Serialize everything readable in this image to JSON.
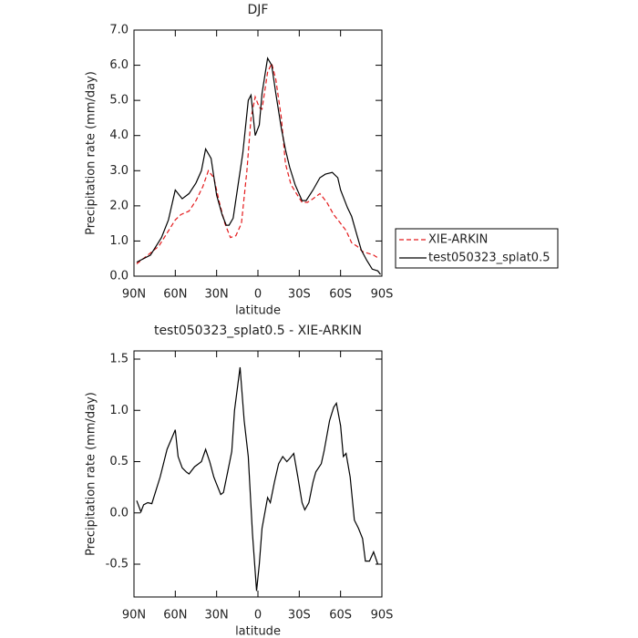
{
  "chart_data": [
    {
      "type": "line",
      "title": "DJF",
      "x_label": "latitude",
      "y_label": "Precipitation rate (mm/day)",
      "xlim": [
        90,
        -90
      ],
      "xticks": [
        {
          "value": 90,
          "label": "90N"
        },
        {
          "value": 60,
          "label": "60N"
        },
        {
          "value": 30,
          "label": "30N"
        },
        0,
        {
          "value": -30,
          "label": "30S"
        },
        {
          "value": -60,
          "label": "60S"
        },
        {
          "value": -90,
          "label": "90S"
        }
      ],
      "ylim": [
        0,
        7
      ],
      "yticks": [
        {
          "value": 0,
          "label": "0.0"
        },
        {
          "value": 1,
          "label": "1.0"
        },
        {
          "value": 2,
          "label": "2.0"
        },
        {
          "value": 3,
          "label": "3.0"
        },
        {
          "value": 4,
          "label": "4.0"
        },
        {
          "value": 5,
          "label": "5.0"
        },
        {
          "value": 6,
          "label": "6.0"
        },
        {
          "value": 7,
          "label": "7.0"
        }
      ],
      "series": [
        {
          "name": "XIE-ARKIN",
          "color": "#e41a1c",
          "dash": true,
          "x": [
            88,
            80,
            72,
            64,
            60,
            56,
            50,
            45,
            40,
            36,
            32,
            28,
            24,
            20,
            16,
            12,
            8,
            5,
            2,
            -1,
            -3,
            -7,
            -10,
            -13,
            -17,
            -20,
            -24,
            -28,
            -32,
            -36,
            -40,
            -45,
            -50,
            -55,
            -60,
            -64,
            -68,
            -72,
            -76,
            -80,
            -84,
            -88
          ],
          "values": [
            0.35,
            0.6,
            0.85,
            1.35,
            1.6,
            1.75,
            1.85,
            2.15,
            2.55,
            3.0,
            2.8,
            2.1,
            1.5,
            1.1,
            1.15,
            1.5,
            3.0,
            4.5,
            5.1,
            4.8,
            4.75,
            5.8,
            6.05,
            5.6,
            4.5,
            3.2,
            2.6,
            2.35,
            2.1,
            2.1,
            2.2,
            2.35,
            2.1,
            1.75,
            1.5,
            1.3,
            0.95,
            0.85,
            0.7,
            0.65,
            0.6,
            0.5
          ]
        },
        {
          "name": "test050323_splat0.5",
          "color": "#000000",
          "dash": false,
          "x": [
            88,
            78,
            70,
            65,
            60,
            55,
            50,
            45,
            41,
            38,
            34,
            30,
            26,
            23,
            21,
            18,
            14,
            11,
            7,
            5,
            2,
            -1,
            -3,
            -7,
            -10,
            -13,
            -17,
            -20,
            -23,
            -27,
            -32,
            -35,
            -40,
            -45,
            -49,
            -54,
            -58,
            -60,
            -65,
            -68,
            -72,
            -75,
            -79,
            -83,
            -87,
            -89
          ],
          "values": [
            0.4,
            0.6,
            1.1,
            1.6,
            2.45,
            2.2,
            2.35,
            2.65,
            3.0,
            3.62,
            3.35,
            2.3,
            1.75,
            1.45,
            1.45,
            1.65,
            2.7,
            3.5,
            5.0,
            5.15,
            4.0,
            4.3,
            5.2,
            6.2,
            6.0,
            5.2,
            4.2,
            3.6,
            3.1,
            2.6,
            2.15,
            2.15,
            2.45,
            2.8,
            2.9,
            2.95,
            2.8,
            2.45,
            1.95,
            1.7,
            1.15,
            0.75,
            0.45,
            0.2,
            0.15,
            0.05
          ]
        }
      ],
      "legend": "outside-right"
    },
    {
      "type": "line",
      "title": "test050323_splat0.5 - XIE-ARKIN",
      "x_label": "latitude",
      "y_label": "Precipitation rate (mm/day)",
      "xlim": [
        90,
        -90
      ],
      "xticks": [
        {
          "value": 90,
          "label": "90N"
        },
        {
          "value": 60,
          "label": "60N"
        },
        {
          "value": 30,
          "label": "30N"
        },
        0,
        {
          "value": -30,
          "label": "30S"
        },
        {
          "value": -60,
          "label": "60S"
        },
        {
          "value": -90,
          "label": "90S"
        }
      ],
      "ylim": [
        -0.82,
        1.58
      ],
      "yticks": [
        -0.5,
        {
          "value": 0,
          "label": "0.0"
        },
        0.5,
        {
          "value": 1,
          "label": "1.0"
        },
        1.5
      ],
      "series": [
        {
          "color": "#000000",
          "dash": false,
          "x": [
            88,
            85,
            83,
            80,
            77,
            71,
            66,
            60,
            58,
            55,
            52,
            50,
            46,
            41,
            38,
            35,
            32,
            30,
            27,
            25,
            22,
            19,
            17,
            13,
            10,
            7,
            4,
            1,
            -1,
            -3,
            -7,
            -9,
            -12,
            -15,
            -18,
            -21,
            -23,
            -26,
            -29,
            -32,
            -34,
            -37,
            -40,
            -42,
            -46,
            -48,
            -52,
            -55,
            -57,
            -60,
            -62,
            -64,
            -67,
            -70,
            -73,
            -76,
            -78,
            -81,
            -84,
            -87
          ],
          "values": [
            0.12,
            0.01,
            0.08,
            0.1,
            0.09,
            0.35,
            0.62,
            0.81,
            0.55,
            0.44,
            0.4,
            0.38,
            0.45,
            0.5,
            0.62,
            0.5,
            0.35,
            0.28,
            0.18,
            0.2,
            0.4,
            0.6,
            1.0,
            1.42,
            0.9,
            0.55,
            -0.2,
            -0.76,
            -0.5,
            -0.15,
            0.15,
            0.1,
            0.3,
            0.48,
            0.55,
            0.5,
            0.53,
            0.58,
            0.35,
            0.1,
            0.03,
            0.1,
            0.3,
            0.4,
            0.48,
            0.6,
            0.9,
            1.03,
            1.07,
            0.85,
            0.55,
            0.58,
            0.35,
            -0.07,
            -0.15,
            -0.25,
            -0.47,
            -0.47,
            -0.38,
            -0.5
          ]
        }
      ]
    }
  ]
}
